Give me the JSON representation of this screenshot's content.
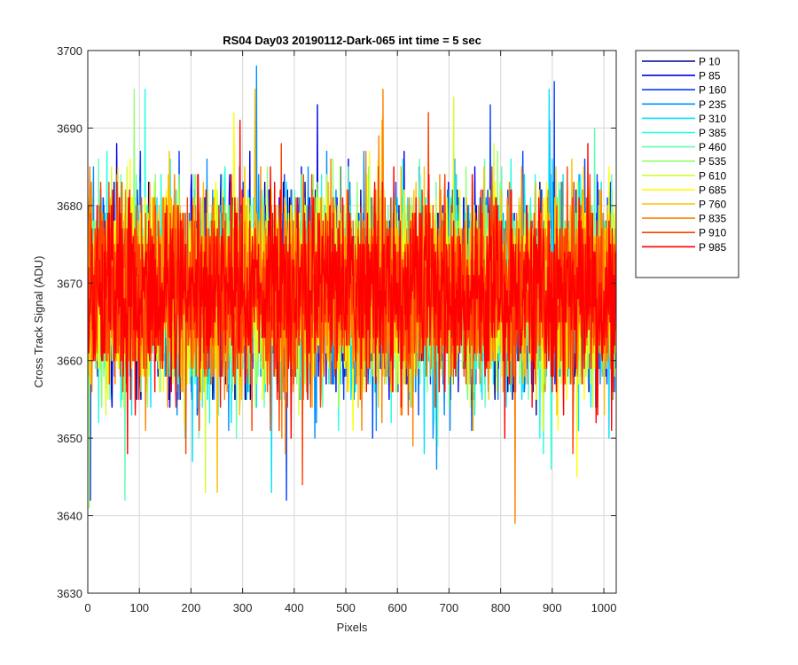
{
  "chart_data": {
    "type": "line",
    "title": "RS04 Day03 20190112-Dark-065 int time = 5 sec",
    "xlabel": "Pixels",
    "ylabel": "Cross Track Signal (ADU)",
    "xlim": [
      0,
      1024
    ],
    "ylim": [
      3630,
      3700
    ],
    "xticks": [
      0,
      100,
      200,
      300,
      400,
      500,
      600,
      700,
      800,
      900,
      1000
    ],
    "yticks": [
      3630,
      3640,
      3650,
      3660,
      3670,
      3680,
      3690,
      3700
    ],
    "xtick_labels": [
      "0",
      "100",
      "200",
      "300",
      "400",
      "500",
      "600",
      "700",
      "800",
      "900",
      "1000"
    ],
    "ytick_labels": [
      "3630",
      "3640",
      "3650",
      "3660",
      "3670",
      "3680",
      "3690",
      "3700"
    ],
    "grid": true,
    "legend_position": "outside-top-right",
    "noise_model": {
      "mean": 3669,
      "std_dev": 6,
      "points_per_series": 1024,
      "note": "dense per-pixel dark noise traces"
    },
    "series": [
      {
        "name": "P 10",
        "color": "#00008F",
        "extreme_min": 3653,
        "extreme_max": 3685
      },
      {
        "name": "P 85",
        "color": "#0000EA",
        "extreme_min": 3642,
        "extreme_max": 3693
      },
      {
        "name": "P 160",
        "color": "#0040FF",
        "extreme_min": 3642,
        "extreme_max": 3696
      },
      {
        "name": "P 235",
        "color": "#0090FF",
        "extreme_min": 3646,
        "extreme_max": 3698
      },
      {
        "name": "P 310",
        "color": "#00E0FF",
        "extreme_min": 3643,
        "extreme_max": 3695
      },
      {
        "name": "P 385",
        "color": "#20FFDF",
        "extreme_min": 3646,
        "extreme_max": 3695
      },
      {
        "name": "P 460",
        "color": "#60FFAF",
        "extreme_min": 3642,
        "extreme_max": 3690
      },
      {
        "name": "P 535",
        "color": "#90FF6F",
        "extreme_min": 3641,
        "extreme_max": 3695
      },
      {
        "name": "P 610",
        "color": "#CFFF30",
        "extreme_min": 3643,
        "extreme_max": 3694
      },
      {
        "name": "P 685",
        "color": "#FFFF00",
        "extreme_min": 3645,
        "extreme_max": 3692
      },
      {
        "name": "P 760",
        "color": "#FFBF00",
        "extreme_min": 3643,
        "extreme_max": 3695
      },
      {
        "name": "P 835",
        "color": "#FF8000",
        "extreme_min": 3639,
        "extreme_max": 3695
      },
      {
        "name": "P 910",
        "color": "#FF4000",
        "extreme_min": 3644,
        "extreme_max": 3692
      },
      {
        "name": "P 985",
        "color": "#FF0000",
        "extreme_min": 3648,
        "extreme_max": 3691
      }
    ]
  }
}
